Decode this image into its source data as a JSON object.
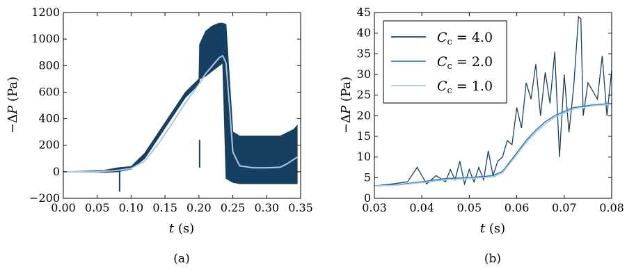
{
  "chart_data": [
    {
      "type": "line",
      "panel_label": "(a)",
      "xlabel": "t (s)",
      "ylabel": "−ΔP (Pa)",
      "xlim": [
        0.0,
        0.35
      ],
      "ylim": [
        -200,
        1200
      ],
      "xticks": [
        "0.00",
        "0.05",
        "0.10",
        "0.15",
        "0.20",
        "0.25",
        "0.30",
        "0.35"
      ],
      "yticks": [
        "−200",
        "0",
        "200",
        "400",
        "600",
        "800",
        "1000",
        "1200"
      ],
      "colors": {
        "oscillating": "#173f5f",
        "mean": "#a8c8e8"
      },
      "band": {
        "x": [
          0.0,
          0.06,
          0.08,
          0.1,
          0.12,
          0.15,
          0.18,
          0.2,
          0.201,
          0.21,
          0.22,
          0.23,
          0.235,
          0.24,
          0.25,
          0.26,
          0.28,
          0.3,
          0.32,
          0.34,
          0.345
        ],
        "upper": [
          0,
          10,
          30,
          40,
          140,
          370,
          600,
          700,
          960,
          1060,
          1100,
          1120,
          1120,
          1110,
          300,
          270,
          270,
          270,
          270,
          320,
          350
        ],
        "lower": [
          0,
          -5,
          0,
          20,
          100,
          330,
          560,
          660,
          700,
          720,
          760,
          800,
          820,
          -50,
          -80,
          -90,
          -90,
          -90,
          -90,
          -90,
          -90
        ]
      },
      "spikes": [
        {
          "x": 0.083,
          "y": -150
        },
        {
          "x": 0.201,
          "y": 240
        }
      ],
      "mean_line": {
        "x": [
          0.0,
          0.05,
          0.08,
          0.1,
          0.12,
          0.14,
          0.16,
          0.18,
          0.2,
          0.21,
          0.22,
          0.23,
          0.235,
          0.24,
          0.245,
          0.25,
          0.26,
          0.28,
          0.3,
          0.32,
          0.33,
          0.345
        ],
        "y": [
          0,
          0,
          10,
          25,
          80,
          210,
          360,
          520,
          660,
          740,
          800,
          860,
          875,
          820,
          500,
          150,
          45,
          30,
          30,
          35,
          60,
          110
        ]
      }
    },
    {
      "type": "line",
      "panel_label": "(b)",
      "xlabel": "t (s)",
      "ylabel": "−ΔP (Pa)",
      "xlim": [
        0.03,
        0.08
      ],
      "ylim": [
        0,
        45
      ],
      "xticks": [
        "0.03",
        "0.04",
        "0.05",
        "0.06",
        "0.07",
        "0.08"
      ],
      "yticks": [
        "0",
        "5",
        "10",
        "15",
        "20",
        "25",
        "30",
        "35",
        "40",
        "45"
      ],
      "legend": {
        "placement": "top-left"
      },
      "series": [
        {
          "name": "C",
          "subscript": "c",
          "value_text": " = 4.0",
          "color": "#173f5f",
          "x": [
            0.03,
            0.034,
            0.037,
            0.039,
            0.041,
            0.043,
            0.045,
            0.046,
            0.047,
            0.048,
            0.049,
            0.05,
            0.051,
            0.052,
            0.053,
            0.054,
            0.055,
            0.056,
            0.057,
            0.058,
            0.059,
            0.06,
            0.061,
            0.062,
            0.063,
            0.064,
            0.065,
            0.066,
            0.067,
            0.068,
            0.069,
            0.07,
            0.071,
            0.072,
            0.073,
            0.0735,
            0.074,
            0.075,
            0.076,
            0.077,
            0.078,
            0.079,
            0.08
          ],
          "y": [
            3,
            3.5,
            4,
            7.5,
            3.5,
            5.5,
            4,
            7,
            4.5,
            9,
            3.5,
            7,
            4,
            7.5,
            4.5,
            11.5,
            5.5,
            9,
            10,
            14,
            13,
            22,
            17,
            28,
            24,
            32.5,
            20,
            30.5,
            23,
            35.5,
            10,
            30,
            16,
            27,
            44,
            43.5,
            20,
            28,
            26,
            24,
            34.5,
            20,
            31
          ]
        },
        {
          "name": "C",
          "subscript": "c",
          "value_text": " = 2.0",
          "color": "#2a7bbf",
          "x": [
            0.03,
            0.035,
            0.04,
            0.045,
            0.05,
            0.055,
            0.057,
            0.06,
            0.062,
            0.064,
            0.066,
            0.068,
            0.07,
            0.072,
            0.074,
            0.076,
            0.078,
            0.08
          ],
          "y": [
            3,
            3.3,
            4,
            4.8,
            5,
            5.5,
            6.5,
            11,
            14,
            16.5,
            18.5,
            20,
            21,
            22,
            22.3,
            22.6,
            22.8,
            23
          ]
        },
        {
          "name": "C",
          "subscript": "c",
          "value_text": " = 1.0",
          "color": "#a8c8e8",
          "x": [
            0.03,
            0.035,
            0.04,
            0.045,
            0.05,
            0.055,
            0.057,
            0.06,
            0.062,
            0.064,
            0.066,
            0.068,
            0.07,
            0.072,
            0.074,
            0.076,
            0.078,
            0.08
          ],
          "y": [
            3,
            3.2,
            3.8,
            4.5,
            4.8,
            5.2,
            6.2,
            10.5,
            13.5,
            16,
            18,
            19.6,
            20.6,
            21.6,
            22,
            22.4,
            22.6,
            22.8
          ]
        }
      ]
    }
  ]
}
